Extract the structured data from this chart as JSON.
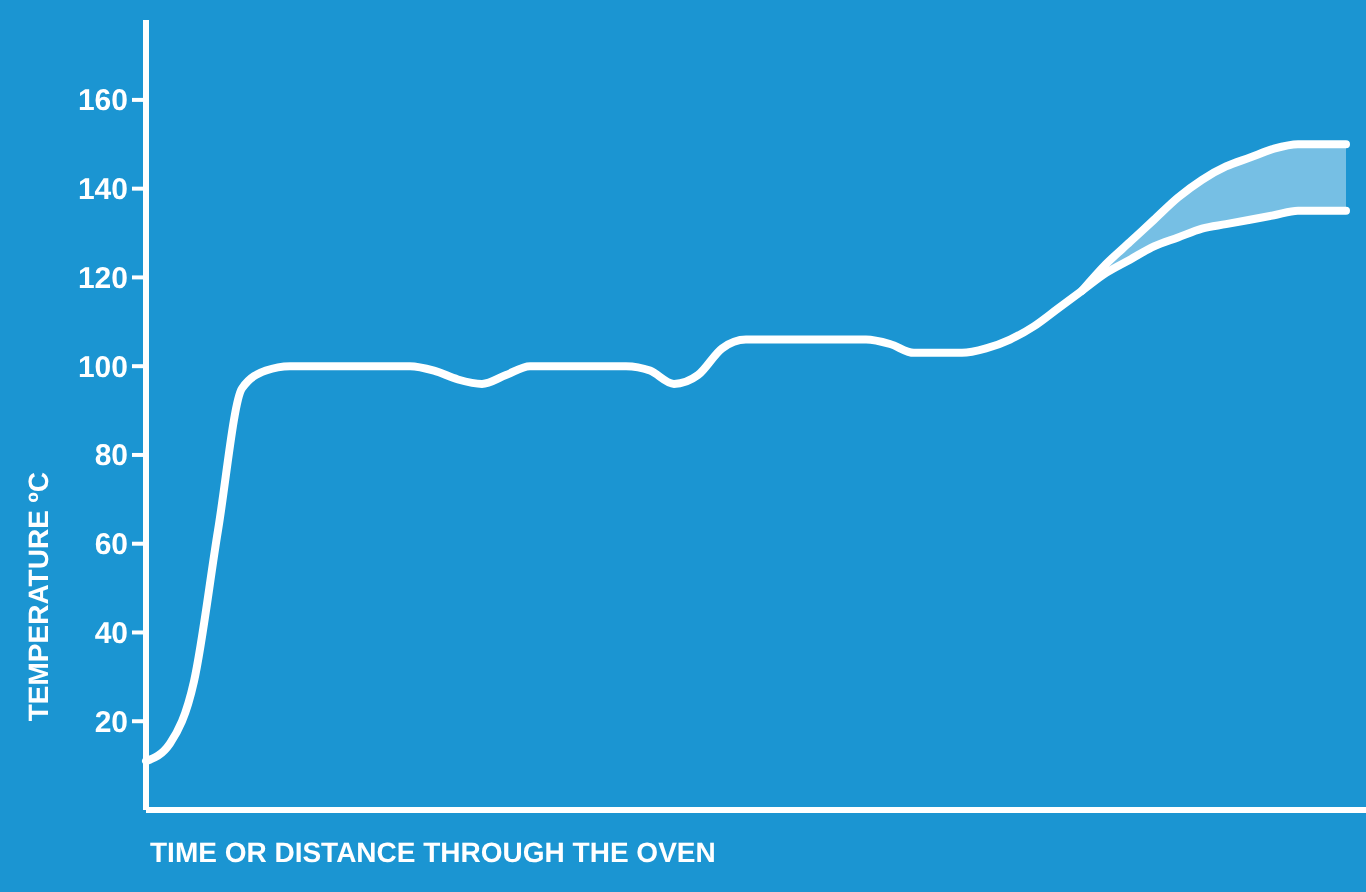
{
  "chart_data": {
    "type": "line",
    "xlabel": "TIME OR DISTANCE THROUGH THE OVEN",
    "ylabel": "TEMPERATURE ºC",
    "categories": [
      null,
      null,
      null,
      null,
      null,
      null,
      null,
      null,
      null,
      null,
      null,
      null,
      null,
      null,
      null,
      null,
      null,
      null,
      null,
      null,
      null,
      null,
      null,
      null,
      null,
      null,
      null,
      null,
      null,
      null,
      null,
      null,
      null,
      null,
      null,
      null,
      null,
      null,
      null,
      null,
      null,
      null,
      null,
      null,
      null,
      null,
      null,
      null,
      null,
      null,
      null
    ],
    "ylim": [
      0,
      178
    ],
    "yticks": [
      20,
      40,
      60,
      80,
      100,
      120,
      140,
      160
    ],
    "grid": false,
    "marker": "none",
    "line_style": "solid",
    "series": [
      {
        "color": "#ffffff",
        "values": [
          11,
          15,
          29,
          63,
          95,
          99,
          100,
          100,
          100,
          100,
          100,
          100,
          99,
          97,
          96,
          98,
          100,
          100,
          100,
          100,
          100,
          99,
          96,
          98,
          104,
          106,
          106,
          106,
          106,
          106,
          106,
          105,
          103,
          103,
          103,
          104,
          106,
          109,
          113,
          117,
          121,
          124,
          127,
          129,
          131,
          132,
          133,
          134,
          135,
          135,
          135
        ]
      },
      {
        "color": "#ffffff",
        "values": [
          null,
          null,
          null,
          null,
          null,
          null,
          null,
          null,
          null,
          null,
          null,
          null,
          null,
          null,
          null,
          null,
          null,
          null,
          null,
          null,
          null,
          null,
          null,
          null,
          null,
          null,
          null,
          null,
          null,
          null,
          null,
          null,
          null,
          null,
          null,
          null,
          null,
          null,
          null,
          117,
          123,
          128,
          133,
          138,
          142,
          145,
          147,
          149,
          150,
          150,
          150
        ],
        "lower": [
          null,
          null,
          null,
          null,
          null,
          null,
          null,
          null,
          null,
          null,
          null,
          null,
          null,
          null,
          null,
          null,
          null,
          null,
          null,
          null,
          null,
          null,
          null,
          null,
          null,
          null,
          null,
          null,
          null,
          null,
          null,
          null,
          null,
          null,
          null,
          null,
          null,
          null,
          null,
          117,
          121,
          124,
          127,
          129,
          131,
          132,
          133,
          134,
          135,
          135,
          135
        ],
        "upper": [
          null,
          null,
          null,
          null,
          null,
          null,
          null,
          null,
          null,
          null,
          null,
          null,
          null,
          null,
          null,
          null,
          null,
          null,
          null,
          null,
          null,
          null,
          null,
          null,
          null,
          null,
          null,
          null,
          null,
          null,
          null,
          null,
          null,
          null,
          null,
          null,
          null,
          null,
          null,
          117,
          123,
          128,
          133,
          138,
          142,
          145,
          147,
          149,
          150,
          150,
          150
        ]
      }
    ]
  }
}
